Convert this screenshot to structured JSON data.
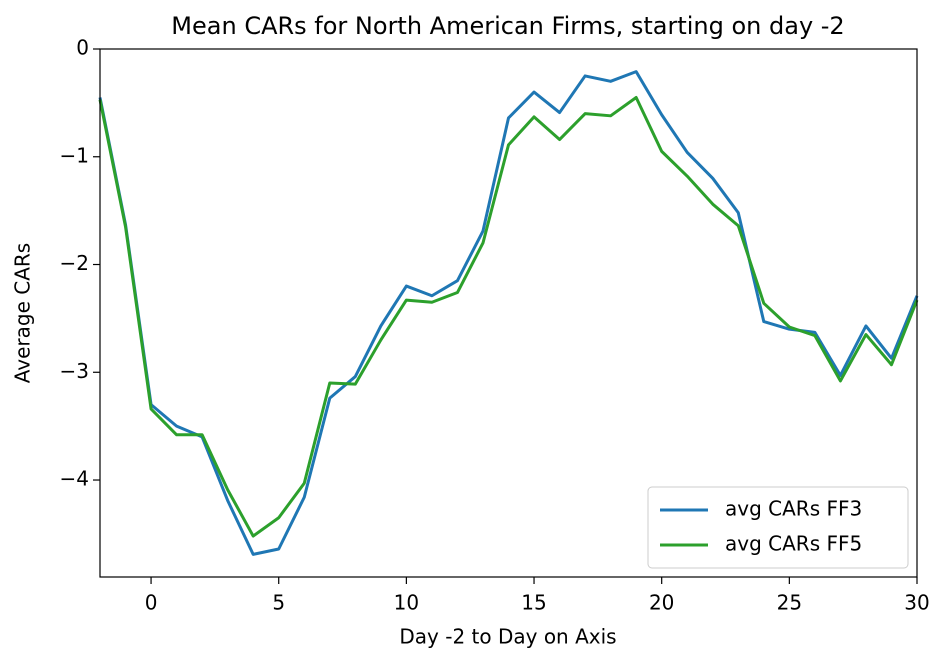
{
  "chart_data": {
    "type": "line",
    "title": "Mean CARs for  North American Firms, starting on day -2",
    "xlabel": "Day -2 to Day on Axis",
    "ylabel": "Average CARs",
    "x": [
      -2,
      -1,
      0,
      1,
      2,
      3,
      4,
      5,
      6,
      7,
      8,
      9,
      10,
      11,
      12,
      13,
      14,
      15,
      16,
      17,
      18,
      19,
      20,
      21,
      22,
      23,
      24,
      25,
      26,
      27,
      28,
      29,
      30
    ],
    "series": [
      {
        "name": "avg CARs FF3",
        "color": "#1f77b4",
        "values": [
          -0.45,
          -1.63,
          -3.3,
          -3.5,
          -3.6,
          -4.19,
          -4.69,
          -4.64,
          -4.16,
          -3.24,
          -3.04,
          -2.57,
          -2.2,
          -2.29,
          -2.15,
          -1.69,
          -0.64,
          -0.4,
          -0.59,
          -0.25,
          -0.3,
          -0.21,
          -0.61,
          -0.96,
          -1.2,
          -1.52,
          -2.53,
          -2.6,
          -2.63,
          -3.03,
          -2.57,
          -2.87,
          -2.29
        ]
      },
      {
        "name": "avg CARs FF5",
        "color": "#2ca02c",
        "values": [
          -0.47,
          -1.65,
          -3.34,
          -3.58,
          -3.58,
          -4.09,
          -4.52,
          -4.35,
          -4.03,
          -3.1,
          -3.11,
          -2.7,
          -2.33,
          -2.35,
          -2.26,
          -1.8,
          -0.89,
          -0.63,
          -0.84,
          -0.6,
          -0.62,
          -0.45,
          -0.95,
          -1.18,
          -1.44,
          -1.64,
          -2.36,
          -2.58,
          -2.66,
          -3.08,
          -2.65,
          -2.93,
          -2.33
        ]
      }
    ],
    "xlim": [
      -2,
      30
    ],
    "xticks": [
      0,
      5,
      10,
      15,
      20,
      25,
      30
    ],
    "ylim": [
      -4.9,
      0
    ],
    "yticks": [
      {
        "value": 0,
        "label": "0"
      },
      {
        "value": -1,
        "label": "−1"
      },
      {
        "value": -2,
        "label": "−2"
      },
      {
        "value": -3,
        "label": "−3"
      },
      {
        "value": -4,
        "label": "−4"
      }
    ],
    "legend": "lower right",
    "grid": false
  }
}
